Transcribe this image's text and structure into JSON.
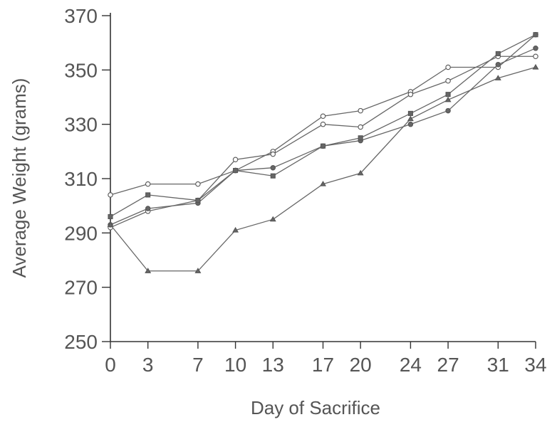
{
  "chart_data": {
    "type": "line",
    "xlabel": "Day of Sacrifice",
    "ylabel": "Average Weight (grams)",
    "x": [
      0,
      3,
      7,
      10,
      13,
      17,
      20,
      24,
      27,
      31,
      34
    ],
    "xticks": [
      "0",
      "3",
      "7",
      "10",
      "13",
      "17",
      "20",
      "24",
      "27",
      "31",
      "34"
    ],
    "yticks": [
      250,
      270,
      290,
      310,
      330,
      350,
      370
    ],
    "ylim": [
      250,
      370
    ],
    "grid": false,
    "series": [
      {
        "marker": "circle-open",
        "values": [
          304,
          308,
          308,
          313,
          320,
          333,
          335,
          342,
          351,
          351,
          363
        ]
      },
      {
        "marker": "circle-open",
        "values": [
          292,
          298,
          302,
          317,
          319,
          330,
          329,
          341,
          346,
          355,
          355
        ]
      },
      {
        "marker": "circle-filled",
        "values": [
          293,
          299,
          301,
          313,
          314,
          322,
          324,
          330,
          335,
          352,
          358
        ]
      },
      {
        "marker": "square",
        "values": [
          296,
          304,
          302,
          313,
          311,
          322,
          325,
          334,
          341,
          356,
          363
        ]
      },
      {
        "marker": "triangle",
        "values": [
          293,
          276,
          276,
          291,
          295,
          308,
          312,
          332,
          339,
          347,
          351
        ]
      }
    ]
  }
}
